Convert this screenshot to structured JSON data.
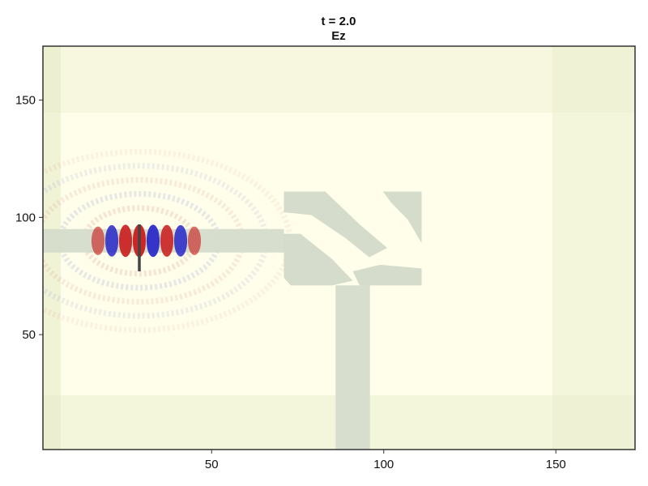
{
  "chart_data": {
    "type": "heatmap",
    "title": "t = 2.0",
    "subtitle": "Ez",
    "xlim": [
      1,
      173
    ],
    "ylim": [
      1,
      173
    ],
    "xticks": [
      50,
      100,
      150
    ],
    "yticks": [
      50,
      100,
      150
    ],
    "xtick_labels": [
      "50",
      "100",
      "150"
    ],
    "ytick_labels": [
      "50",
      "100",
      "150"
    ],
    "grid": false,
    "colors": {
      "background": "#fefeea",
      "pml_edge": "#e3e9c4",
      "geometry": "#d6dccb",
      "positive": "#c81e1e",
      "negative": "#2424c8",
      "source": "#444444",
      "frame": "#333333"
    },
    "geometry": {
      "input_waveguide": {
        "x": [
          1,
          71
        ],
        "y": [
          85,
          95
        ]
      },
      "output_waveguide": {
        "x": [
          86,
          96
        ],
        "y": [
          1,
          71
        ]
      },
      "design_region": {
        "x": [
          71,
          111
        ],
        "y": [
          71,
          111
        ]
      }
    },
    "source": {
      "x": 29,
      "y": [
        77,
        97
      ]
    },
    "field_pattern": {
      "center": [
        29,
        90
      ],
      "lobes_x": [
        17,
        21,
        25,
        29,
        33,
        37,
        41,
        45
      ],
      "lobe_sign": [
        1,
        -1,
        1,
        1,
        -1,
        1,
        -1,
        1
      ],
      "lobe_strength": [
        0.55,
        0.85,
        0.95,
        1.0,
        0.95,
        0.9,
        0.85,
        0.55
      ],
      "ring_radii": [
        14,
        20,
        26,
        32,
        38
      ]
    }
  }
}
